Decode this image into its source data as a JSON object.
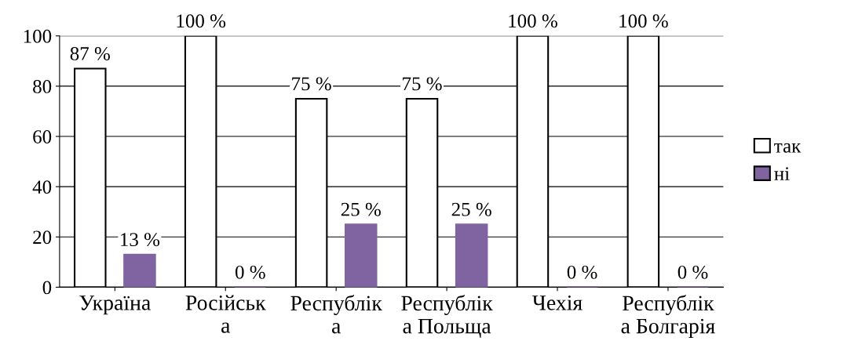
{
  "chart_data": {
    "type": "bar",
    "categories": [
      "Україна",
      "Російськ\nа",
      "Республік\nа",
      "Республік\nа Польща",
      "Чехія",
      "Республік\nа Болгарія"
    ],
    "series": [
      {
        "name": "так",
        "color": "#ffffff",
        "values": [
          87,
          100,
          75,
          75,
          100,
          100
        ],
        "value_labels": [
          "87 %",
          "100 %",
          "75 %",
          "75 %",
          "100 %",
          "100 %"
        ]
      },
      {
        "name": "ні",
        "color": "#8064a2",
        "values": [
          13,
          0,
          25,
          25,
          0,
          0
        ],
        "value_labels": [
          "13 %",
          "0 %",
          "25 %",
          "25 %",
          "0 %",
          "0 %"
        ]
      }
    ],
    "ylim": [
      0,
      100
    ],
    "yticks": [
      0,
      20,
      40,
      60,
      80,
      100
    ],
    "grid": "y",
    "legend": "right"
  }
}
